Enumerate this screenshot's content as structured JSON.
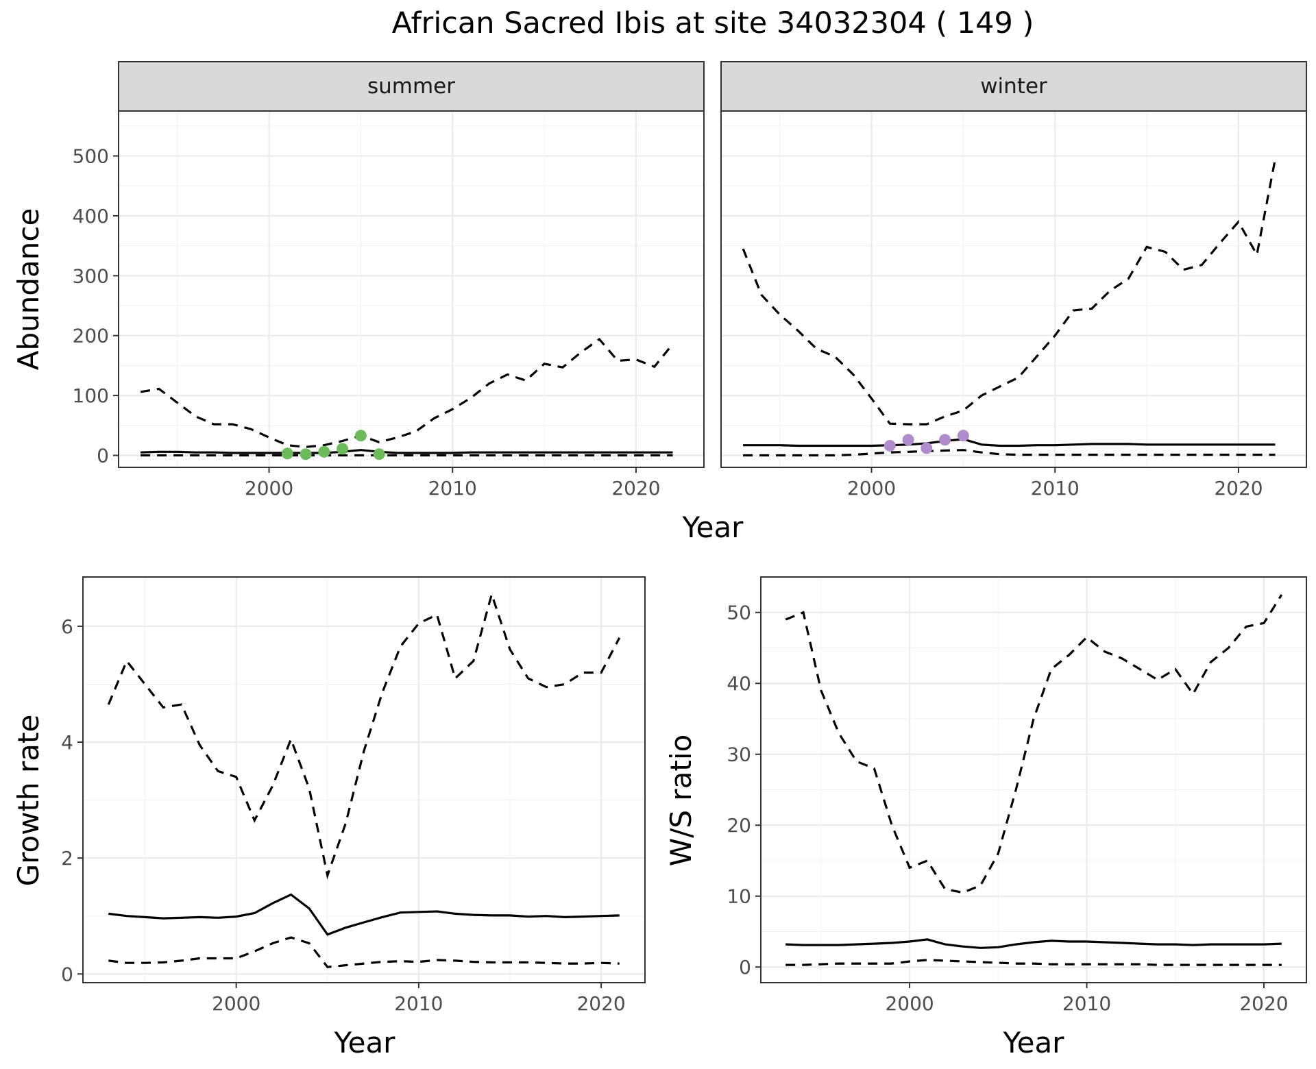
{
  "title": "African Sacred Ibis at site 34032304 ( 149 )",
  "colors": {
    "summer_points": "#6cbb5a",
    "winter_points": "#b08ccd",
    "lines": "#000000"
  },
  "chart_data": [
    {
      "id": "abundance-summer",
      "type": "line",
      "facet_label": "summer",
      "xlabel": "",
      "ylabel": "Abundance",
      "xlim": [
        1991.8,
        2023.7
      ],
      "ylim": [
        -20,
        575
      ],
      "xticks": [
        2000,
        2010,
        2020
      ],
      "yticks": [
        0,
        100,
        200,
        300,
        400,
        500
      ],
      "x": [
        1993,
        1994,
        1995,
        1996,
        1997,
        1998,
        1999,
        2000,
        2001,
        2002,
        2003,
        2004,
        2005,
        2006,
        2007,
        2008,
        2009,
        2010,
        2011,
        2012,
        2013,
        2014,
        2015,
        2016,
        2017,
        2018,
        2019,
        2020,
        2021,
        2022
      ],
      "series": [
        {
          "style": "dashed",
          "values": [
            106,
            111,
            88,
            65,
            52,
            52,
            44,
            30,
            17,
            14,
            17,
            24,
            33,
            22,
            30,
            40,
            62,
            77,
            96,
            120,
            135,
            125,
            153,
            147,
            172,
            194,
            158,
            160,
            148,
            186
          ]
        },
        {
          "style": "solid",
          "values": [
            5,
            6,
            6,
            5,
            5,
            4,
            4,
            4,
            4,
            4,
            4,
            6,
            9,
            6,
            4,
            4,
            4,
            4,
            5,
            5,
            5,
            5,
            5,
            5,
            5,
            5,
            5,
            5,
            5,
            5
          ]
        },
        {
          "style": "dashed",
          "values": [
            0,
            0,
            0,
            0,
            0,
            0,
            0,
            0,
            0,
            0,
            0,
            0,
            0,
            0,
            0,
            0,
            0,
            0,
            0,
            0,
            0,
            0,
            0,
            0,
            0,
            0,
            0,
            0,
            0,
            0
          ]
        }
      ],
      "points": {
        "x": [
          2001,
          2002,
          2003,
          2004,
          2005,
          2006
        ],
        "y": [
          3,
          2,
          6,
          11,
          33,
          2
        ]
      }
    },
    {
      "id": "abundance-winter",
      "type": "line",
      "facet_label": "winter",
      "xlabel": "",
      "ylabel": "",
      "xlim": [
        1991.8,
        2023.7
      ],
      "ylim": [
        -20,
        575
      ],
      "xticks": [
        2000,
        2010,
        2020
      ],
      "yticks": [
        0,
        100,
        200,
        300,
        400,
        500
      ],
      "x": [
        1993,
        1994,
        1995,
        1996,
        1997,
        1998,
        1999,
        2000,
        2001,
        2002,
        2003,
        2004,
        2005,
        2006,
        2007,
        2008,
        2009,
        2010,
        2011,
        2012,
        2013,
        2014,
        2015,
        2016,
        2017,
        2018,
        2019,
        2020,
        2021,
        2022
      ],
      "series": [
        {
          "style": "dashed",
          "values": [
            345,
            268,
            235,
            208,
            178,
            165,
            135,
            95,
            53,
            52,
            52,
            65,
            75,
            100,
            115,
            130,
            165,
            200,
            242,
            245,
            275,
            295,
            348,
            340,
            310,
            318,
            355,
            390,
            335,
            495
          ]
        },
        {
          "style": "solid",
          "values": [
            17,
            17,
            17,
            16,
            16,
            16,
            16,
            16,
            17,
            18,
            20,
            24,
            27,
            18,
            16,
            16,
            17,
            17,
            18,
            19,
            19,
            19,
            18,
            18,
            18,
            18,
            18,
            18,
            18,
            18
          ]
        },
        {
          "style": "dashed",
          "values": [
            0,
            0,
            0,
            0,
            0,
            0,
            1,
            3,
            5,
            6,
            7,
            8,
            9,
            5,
            2,
            1,
            1,
            1,
            1,
            1,
            1,
            1,
            1,
            1,
            1,
            1,
            1,
            1,
            1,
            1
          ]
        }
      ],
      "points": {
        "x": [
          2001,
          2002,
          2003,
          2004,
          2005
        ],
        "y": [
          16,
          26,
          12,
          26,
          33
        ]
      }
    },
    {
      "id": "growth-rate",
      "type": "line",
      "xlabel": "Year",
      "ylabel": "Growth rate",
      "xlim": [
        1991.6,
        2022.4
      ],
      "ylim": [
        -0.15,
        6.85
      ],
      "xticks": [
        2000,
        2010,
        2020
      ],
      "yticks": [
        0,
        2,
        4,
        6
      ],
      "x": [
        1993,
        1994,
        1995,
        1996,
        1997,
        1998,
        1999,
        2000,
        2001,
        2002,
        2003,
        2004,
        2005,
        2006,
        2007,
        2008,
        2009,
        2010,
        2011,
        2012,
        2013,
        2014,
        2015,
        2016,
        2017,
        2018,
        2019,
        2020,
        2021
      ],
      "series": [
        {
          "style": "dashed",
          "values": [
            4.65,
            5.4,
            5.0,
            4.6,
            4.65,
            3.95,
            3.5,
            3.4,
            2.65,
            3.25,
            4.05,
            3.2,
            1.7,
            2.6,
            3.85,
            4.85,
            5.65,
            6.05,
            6.2,
            5.1,
            5.4,
            6.55,
            5.6,
            5.1,
            4.95,
            5.0,
            5.2,
            5.2,
            5.8
          ]
        },
        {
          "style": "solid",
          "values": [
            1.04,
            1.0,
            0.98,
            0.96,
            0.97,
            0.98,
            0.97,
            0.99,
            1.05,
            1.22,
            1.37,
            1.13,
            0.68,
            0.8,
            0.89,
            0.98,
            1.06,
            1.07,
            1.08,
            1.04,
            1.02,
            1.01,
            1.01,
            0.99,
            1.0,
            0.98,
            0.99,
            1.0,
            1.01
          ]
        },
        {
          "style": "dashed",
          "values": [
            0.23,
            0.19,
            0.19,
            0.2,
            0.23,
            0.27,
            0.27,
            0.27,
            0.39,
            0.53,
            0.63,
            0.53,
            0.12,
            0.15,
            0.18,
            0.21,
            0.22,
            0.21,
            0.24,
            0.23,
            0.21,
            0.2,
            0.2,
            0.2,
            0.19,
            0.18,
            0.18,
            0.19,
            0.18
          ]
        }
      ]
    },
    {
      "id": "ws-ratio",
      "type": "line",
      "xlabel": "Year",
      "ylabel": "W/S ratio",
      "xlim": [
        1991.6,
        2022.4
      ],
      "ylim": [
        -2.2,
        55
      ],
      "xticks": [
        2000,
        2010,
        2020
      ],
      "yticks": [
        0,
        10,
        20,
        30,
        40,
        50
      ],
      "x": [
        1993,
        1994,
        1995,
        1996,
        1997,
        1998,
        1999,
        2000,
        2001,
        2002,
        2003,
        2004,
        2005,
        2006,
        2007,
        2008,
        2009,
        2010,
        2011,
        2012,
        2013,
        2014,
        2015,
        2016,
        2017,
        2018,
        2019,
        2020,
        2021
      ],
      "series": [
        {
          "style": "dashed",
          "values": [
            49,
            50,
            39,
            33,
            29,
            28,
            20,
            14,
            15,
            11,
            10.5,
            11.5,
            16,
            25,
            35,
            42,
            44,
            46.5,
            44.5,
            43.5,
            42,
            40.5,
            42,
            38.5,
            43,
            45,
            48,
            48.5,
            52.5
          ]
        },
        {
          "style": "solid",
          "values": [
            3.2,
            3.1,
            3.1,
            3.1,
            3.2,
            3.3,
            3.4,
            3.6,
            3.9,
            3.2,
            2.9,
            2.7,
            2.8,
            3.2,
            3.5,
            3.7,
            3.6,
            3.6,
            3.5,
            3.4,
            3.3,
            3.2,
            3.2,
            3.1,
            3.2,
            3.2,
            3.2,
            3.2,
            3.3
          ]
        },
        {
          "style": "dashed",
          "values": [
            0.3,
            0.3,
            0.4,
            0.5,
            0.5,
            0.5,
            0.5,
            0.8,
            1.0,
            0.9,
            0.8,
            0.7,
            0.6,
            0.5,
            0.5,
            0.4,
            0.4,
            0.4,
            0.4,
            0.4,
            0.4,
            0.3,
            0.3,
            0.3,
            0.3,
            0.3,
            0.3,
            0.3,
            0.3
          ]
        }
      ]
    }
  ]
}
